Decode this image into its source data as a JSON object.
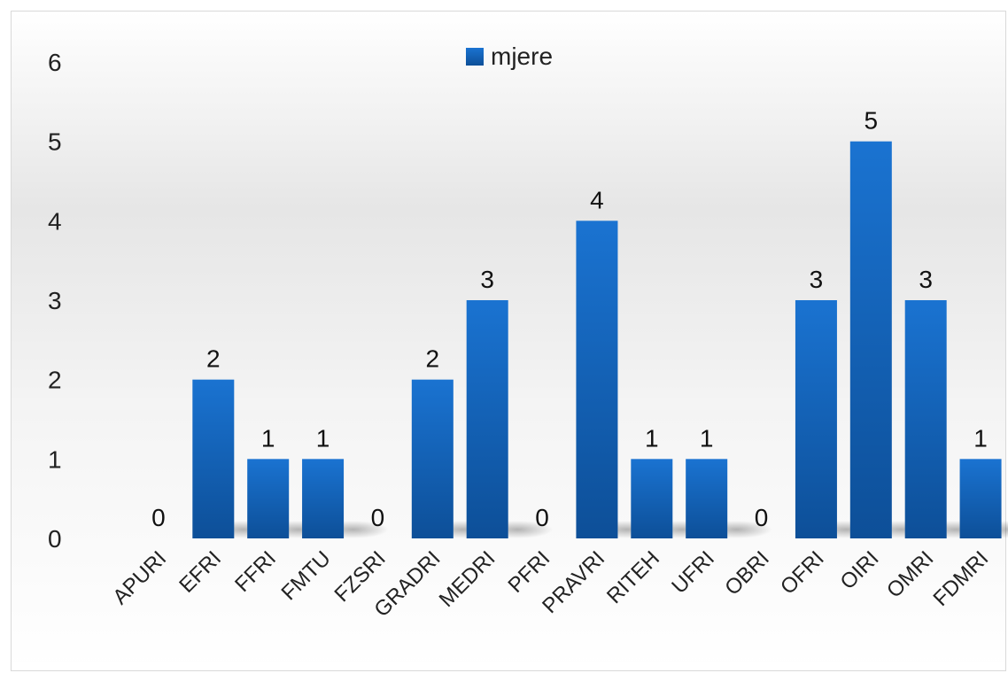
{
  "chart_data": {
    "type": "bar",
    "title": "",
    "xlabel": "",
    "ylabel": "",
    "ylim": [
      0,
      6
    ],
    "yticks": [
      0,
      1,
      2,
      3,
      4,
      5,
      6
    ],
    "grid": false,
    "legend_position": "top-center",
    "categories": [
      "APURI",
      "EFRI",
      "FFRI",
      "FMTU",
      "FZSRI",
      "GRADRI",
      "MEDRI",
      "PFRI",
      "PRAVRI",
      "RITEH",
      "UFRI",
      "OBRI",
      "OFRI",
      "OIRI",
      "OMRI",
      "FDMRI"
    ],
    "series": [
      {
        "name": "mjere",
        "color": "#1565c0",
        "values": [
          0,
          2,
          1,
          1,
          0,
          2,
          3,
          0,
          4,
          1,
          1,
          0,
          3,
          5,
          3,
          1
        ]
      }
    ]
  }
}
